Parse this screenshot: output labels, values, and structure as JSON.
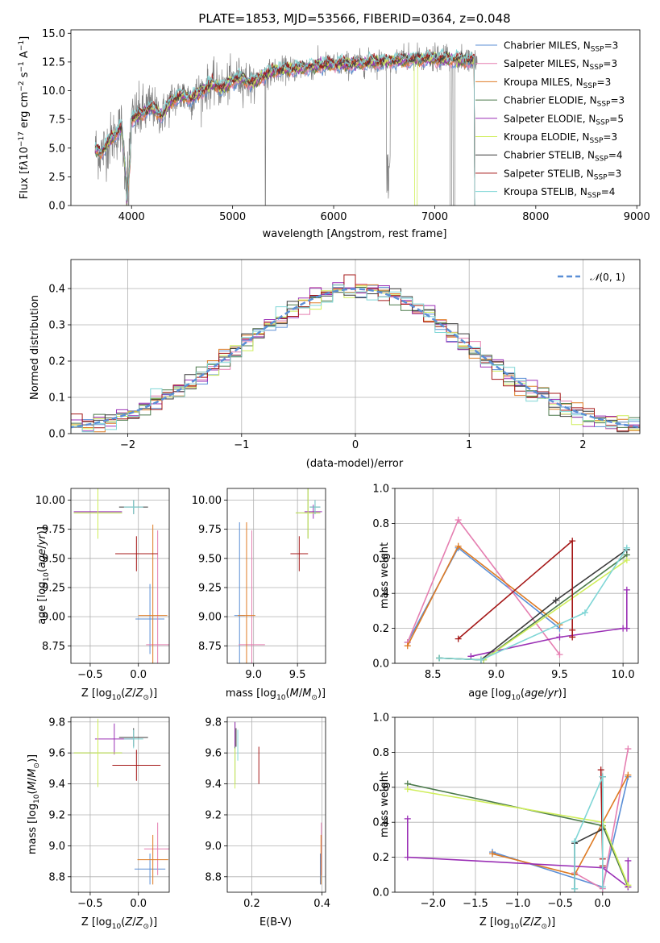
{
  "figure_title": "PLATE=1853, MJD=53566, FIBERID=0364, z=0.048",
  "colors": {
    "Chabrier MILES": "#5b8fd6",
    "Salpeter MILES": "#e57fb1",
    "Kroupa MILES": "#de7b24",
    "Chabrier ELODIE": "#4c7a4c",
    "Salpeter ELODIE": "#9a2fb5",
    "Kroupa ELODIE": "#cfee5a",
    "Chabrier STELIB": "#3a3a3a",
    "Salpeter STELIB": "#a51818",
    "Kroupa STELIB": "#7fd6d6",
    "data": "#808080",
    "normal": "#5b8fd6"
  },
  "chart_data": [
    {
      "type": "line",
      "title": "PLATE=1853, MJD=53566, FIBERID=0364, z=0.048",
      "xlabel": "wavelength [Angstrom, rest frame]",
      "ylabel": "Flux [f$_\\lambda$10$^{-17}$ erg cm$^{-2}$ s$^{-1}$ A$^{-1}$]",
      "xlim": [
        3400,
        9030
      ],
      "ylim": [
        0,
        15.3
      ],
      "xticks": [
        4000,
        5000,
        6000,
        7000,
        8000,
        9000
      ],
      "yticks": [
        0.0,
        2.5,
        5.0,
        7.5,
        10.0,
        12.5,
        15.0
      ],
      "grid": false,
      "legend_position": "top-right",
      "legend": [
        {
          "name": "Chabrier MILES",
          "nssp": "3"
        },
        {
          "name": "Salpeter MILES",
          "nssp": "3"
        },
        {
          "name": "Kroupa MILES",
          "nssp": "3"
        },
        {
          "name": "Chabrier ELODIE",
          "nssp": "3"
        },
        {
          "name": "Salpeter ELODIE",
          "nssp": "5"
        },
        {
          "name": "Kroupa ELODIE",
          "nssp": "3"
        },
        {
          "name": "Chabrier STELIB",
          "nssp": "4"
        },
        {
          "name": "Salpeter STELIB",
          "nssp": "3"
        },
        {
          "name": "Kroupa STELIB",
          "nssp": "4"
        }
      ],
      "continuum_wl": [
        3620,
        3700,
        3800,
        3900,
        3950,
        4000,
        4100,
        4200,
        4300,
        4400,
        4500,
        4600,
        4700,
        4800,
        4900,
        5000,
        5100,
        5200,
        5300,
        5400,
        5500,
        5600,
        5800,
        6000,
        6200,
        6400,
        6600,
        6800,
        7000,
        7200,
        7400
      ],
      "continuum_flux": [
        5.0,
        4.6,
        5.8,
        6.8,
        2.0,
        7.5,
        8.0,
        8.6,
        7.8,
        9.2,
        9.6,
        9.4,
        10.0,
        10.6,
        10.2,
        10.9,
        11.1,
        10.6,
        11.3,
        11.7,
        11.8,
        11.9,
        12.1,
        12.3,
        12.3,
        12.5,
        12.6,
        12.7,
        12.8,
        12.7,
        12.6
      ]
    },
    {
      "type": "line",
      "title": "",
      "xlabel": "(data-model)/error",
      "ylabel": "Normed distribution",
      "xlim": [
        -2.5,
        2.5
      ],
      "ylim": [
        0,
        0.48
      ],
      "xticks": [
        -2,
        -1,
        0,
        1,
        2
      ],
      "yticks": [
        0.0,
        0.1,
        0.2,
        0.3,
        0.4
      ],
      "grid": true,
      "legend_position": "top-right",
      "legend": [
        "$\\mathcal{N}(0,1)$"
      ]
    },
    {
      "type": "scatter",
      "title": "",
      "xlabel": "Z [log$_{10}$($Z/Z_\\odot$)]",
      "ylabel": "age  [log$_{10}$($age/yr$)]",
      "xlim": [
        -0.7,
        0.32
      ],
      "ylim": [
        8.6,
        10.1
      ],
      "xticks": [
        -0.5,
        0.0
      ],
      "yticks": [
        8.75,
        9.0,
        9.25,
        9.5,
        9.75,
        10.0
      ],
      "grid": true,
      "points": [
        {
          "series": "Chabrier MILES",
          "x": 0.12,
          "y": 8.98,
          "xerr": 0.15,
          "yerr": 0.3
        },
        {
          "series": "Salpeter MILES",
          "x": 0.2,
          "y": 8.76,
          "xerr": 0.12,
          "yerr": 0.98
        },
        {
          "series": "Kroupa MILES",
          "x": 0.15,
          "y": 9.01,
          "xerr": 0.15,
          "yerr": 0.78
        },
        {
          "series": "Chabrier ELODIE",
          "x": -0.42,
          "y": 9.89,
          "xerr": 0.25,
          "yerr": 0.22
        },
        {
          "series": "Salpeter ELODIE",
          "x": -0.42,
          "y": 9.9,
          "xerr": 0.25,
          "yerr": 0.06
        },
        {
          "series": "Kroupa ELODIE",
          "x": -0.42,
          "y": 9.89,
          "xerr": 0.25,
          "yerr": 0.22
        },
        {
          "series": "Chabrier STELIB",
          "x": -0.05,
          "y": 9.94,
          "xerr": 0.15,
          "yerr": 0.06
        },
        {
          "series": "Salpeter STELIB",
          "x": -0.02,
          "y": 9.54,
          "xerr": 0.22,
          "yerr": 0.15
        },
        {
          "series": "Kroupa STELIB",
          "x": -0.05,
          "y": 9.94,
          "xerr": 0.1,
          "yerr": 0.06
        }
      ]
    },
    {
      "type": "scatter",
      "title": "",
      "xlabel": "mass [log$_{10}$($M/M_\\odot$)]",
      "ylabel": "",
      "xlim": [
        8.7,
        9.82
      ],
      "ylim": [
        8.6,
        10.1
      ],
      "xticks": [
        9.0,
        9.5
      ],
      "yticks": [
        8.75,
        9.0,
        9.25,
        9.5,
        9.75,
        10.0
      ],
      "grid": true,
      "points": [
        {
          "series": "Chabrier MILES",
          "x": 8.84,
          "y": 9.01,
          "xerr": 0.06,
          "yerr": 0.8
        },
        {
          "series": "Salpeter MILES",
          "x": 8.98,
          "y": 8.76,
          "xerr": 0.15,
          "yerr": 0.98
        },
        {
          "series": "Kroupa MILES",
          "x": 8.92,
          "y": 9.01,
          "xerr": 0.1,
          "yerr": 0.8
        },
        {
          "series": "Chabrier ELODIE",
          "x": 9.62,
          "y": 9.89,
          "xerr": 0.14,
          "yerr": 0.22
        },
        {
          "series": "Salpeter ELODIE",
          "x": 9.68,
          "y": 9.9,
          "xerr": 0.1,
          "yerr": 0.06
        },
        {
          "series": "Kroupa ELODIE",
          "x": 9.62,
          "y": 9.89,
          "xerr": 0.14,
          "yerr": 0.22
        },
        {
          "series": "Chabrier STELIB",
          "x": 9.7,
          "y": 9.94,
          "xerr": 0.06,
          "yerr": 0.06
        },
        {
          "series": "Salpeter STELIB",
          "x": 9.52,
          "y": 9.54,
          "xerr": 0.1,
          "yerr": 0.15
        },
        {
          "series": "Kroupa STELIB",
          "x": 9.7,
          "y": 9.94,
          "xerr": 0.06,
          "yerr": 0.06
        }
      ]
    },
    {
      "type": "line",
      "title": "",
      "xlabel": "age  [log$_{10}$($age/yr$)]",
      "ylabel": "mass weight",
      "xlim": [
        8.2,
        10.12
      ],
      "ylim": [
        0,
        1.0
      ],
      "xticks": [
        8.5,
        9.0,
        9.5,
        10.0
      ],
      "yticks": [
        0.0,
        0.2,
        0.4,
        0.6,
        0.8,
        1.0
      ],
      "grid": true,
      "series": [
        {
          "name": "Chabrier MILES",
          "x": [
            8.3,
            8.7,
            9.5
          ],
          "y": [
            0.12,
            0.66,
            0.2
          ]
        },
        {
          "name": "Salpeter MILES",
          "x": [
            8.3,
            8.7,
            9.5
          ],
          "y": [
            0.12,
            0.82,
            0.05
          ]
        },
        {
          "name": "Kroupa MILES",
          "x": [
            8.3,
            8.7,
            9.5
          ],
          "y": [
            0.1,
            0.67,
            0.22
          ]
        },
        {
          "name": "Chabrier ELODIE",
          "x": [
            8.55,
            8.9,
            10.03
          ],
          "y": [
            0.03,
            0.02,
            0.62
          ]
        },
        {
          "name": "Salpeter ELODIE",
          "x": [
            8.8,
            9.5,
            10.0,
            10.03,
            10.03
          ],
          "y": [
            0.04,
            0.15,
            0.2,
            0.2,
            0.42
          ]
        },
        {
          "name": "Kroupa ELODIE",
          "x": [
            8.55,
            8.9,
            10.03
          ],
          "y": [
            0.03,
            0.02,
            0.59
          ]
        },
        {
          "name": "Chabrier STELIB",
          "x": [
            8.55,
            8.88,
            9.47,
            10.03
          ],
          "y": [
            0.03,
            0.02,
            0.36,
            0.65
          ]
        },
        {
          "name": "Salpeter STELIB",
          "x": [
            8.7,
            9.6,
            9.6,
            9.6
          ],
          "y": [
            0.14,
            0.7,
            0.19,
            0.15
          ]
        },
        {
          "name": "Kroupa STELIB",
          "x": [
            8.55,
            8.88,
            9.7,
            10.03
          ],
          "y": [
            0.03,
            0.02,
            0.29,
            0.66
          ]
        }
      ]
    },
    {
      "type": "scatter",
      "title": "",
      "xlabel": "Z [log$_{10}$($Z/Z_\\odot$)]",
      "ylabel": "mass [log$_{10}$($M/M_\\odot$)]",
      "xlim": [
        -0.7,
        0.32
      ],
      "ylim": [
        8.7,
        9.83
      ],
      "xticks": [
        -0.5,
        0.0
      ],
      "yticks": [
        8.8,
        9.0,
        9.2,
        9.4,
        9.6,
        9.8
      ],
      "grid": true,
      "points": [
        {
          "series": "Chabrier MILES",
          "x": 0.12,
          "y": 8.85,
          "xerr": 0.16,
          "yerr": 0.1
        },
        {
          "series": "Salpeter MILES",
          "x": 0.2,
          "y": 8.98,
          "xerr": 0.14,
          "yerr": 0.17
        },
        {
          "series": "Kroupa MILES",
          "x": 0.15,
          "y": 8.91,
          "xerr": 0.16,
          "yerr": 0.16
        },
        {
          "series": "Chabrier ELODIE",
          "x": -0.42,
          "y": 9.6,
          "xerr": 0.25,
          "yerr": 0.22
        },
        {
          "series": "Salpeter ELODIE",
          "x": -0.25,
          "y": 9.69,
          "xerr": 0.2,
          "yerr": 0.1
        },
        {
          "series": "Kroupa ELODIE",
          "x": -0.42,
          "y": 9.6,
          "xerr": 0.25,
          "yerr": 0.22
        },
        {
          "series": "Chabrier STELIB",
          "x": -0.05,
          "y": 9.7,
          "xerr": 0.15,
          "yerr": 0.06
        },
        {
          "series": "Salpeter STELIB",
          "x": -0.02,
          "y": 9.52,
          "xerr": 0.25,
          "yerr": 0.1
        },
        {
          "series": "Kroupa STELIB",
          "x": -0.05,
          "y": 9.69,
          "xerr": 0.1,
          "yerr": 0.06
        }
      ]
    },
    {
      "type": "scatter",
      "title": "",
      "xlabel": "E(B-V)",
      "ylabel": "",
      "xlim": [
        0.13,
        0.41
      ],
      "ylim": [
        8.7,
        9.83
      ],
      "xticks": [
        0.2,
        0.4
      ],
      "yticks": [
        8.8,
        9.0,
        9.2,
        9.4,
        9.6,
        9.8
      ],
      "grid": true,
      "points": [
        {
          "series": "Chabrier MILES",
          "x": 0.395,
          "y": 8.85,
          "xerr": 0.0,
          "yerr": 0.1
        },
        {
          "series": "Salpeter MILES",
          "x": 0.398,
          "y": 8.98,
          "xerr": 0.0,
          "yerr": 0.17
        },
        {
          "series": "Kroupa MILES",
          "x": 0.397,
          "y": 8.91,
          "xerr": 0.0,
          "yerr": 0.16
        },
        {
          "series": "Chabrier ELODIE",
          "x": 0.152,
          "y": 9.6,
          "xerr": 0.0,
          "yerr": 0.2
        },
        {
          "series": "Salpeter ELODIE",
          "x": 0.152,
          "y": 9.72,
          "xerr": 0.0,
          "yerr": 0.08
        },
        {
          "series": "Kroupa ELODIE",
          "x": 0.152,
          "y": 9.5,
          "xerr": 0.0,
          "yerr": 0.13
        },
        {
          "series": "Chabrier STELIB",
          "x": 0.155,
          "y": 9.7,
          "xerr": 0.0,
          "yerr": 0.06
        },
        {
          "series": "Salpeter STELIB",
          "x": 0.22,
          "y": 9.52,
          "xerr": 0.0,
          "yerr": 0.12
        },
        {
          "series": "Kroupa STELIB",
          "x": 0.16,
          "y": 9.65,
          "xerr": 0.0,
          "yerr": 0.1
        }
      ]
    },
    {
      "type": "line",
      "title": "",
      "xlabel": "Z [log$_{10}$($Z/Z_\\odot$)]",
      "ylabel": "mass weight",
      "xlim": [
        -2.45,
        0.42
      ],
      "ylim": [
        0,
        1.0
      ],
      "xticks": [
        -2.0,
        -1.5,
        -1.0,
        -0.5,
        0.0
      ],
      "yticks": [
        0.0,
        0.2,
        0.4,
        0.6,
        0.8,
        1.0
      ],
      "grid": true,
      "series": [
        {
          "name": "Chabrier MILES",
          "x": [
            -1.3,
            0.0,
            0.3
          ],
          "y": [
            0.23,
            0.03,
            0.66
          ]
        },
        {
          "name": "Salpeter MILES",
          "x": [
            -0.33,
            0.0,
            0.3
          ],
          "y": [
            0.11,
            0.02,
            0.82
          ]
        },
        {
          "name": "Kroupa MILES",
          "x": [
            -1.3,
            -0.33,
            0.3
          ],
          "y": [
            0.22,
            0.1,
            0.67
          ]
        },
        {
          "name": "Chabrier ELODIE",
          "x": [
            -2.3,
            0.0,
            0.3
          ],
          "y": [
            0.62,
            0.38,
            0.03
          ]
        },
        {
          "name": "Salpeter ELODIE",
          "x": [
            -2.3,
            -2.3,
            0.0,
            0.3,
            0.3
          ],
          "y": [
            0.42,
            0.2,
            0.14,
            0.03,
            0.18
          ]
        },
        {
          "name": "Kroupa ELODIE",
          "x": [
            -2.3,
            0.0,
            0.3
          ],
          "y": [
            0.59,
            0.4,
            0.04
          ]
        },
        {
          "name": "Chabrier STELIB",
          "x": [
            -0.33,
            -0.33,
            0.0,
            0.0
          ],
          "y": [
            0.02,
            0.28,
            0.36,
            0.66
          ]
        },
        {
          "name": "Salpeter STELIB",
          "x": [
            -0.02,
            0.0,
            0.0
          ],
          "y": [
            0.7,
            0.19,
            0.15
          ]
        },
        {
          "name": "Kroupa STELIB",
          "x": [
            -0.33,
            -0.33,
            0.0,
            0.0
          ],
          "y": [
            0.02,
            0.29,
            0.66,
            0.03
          ]
        }
      ]
    }
  ]
}
